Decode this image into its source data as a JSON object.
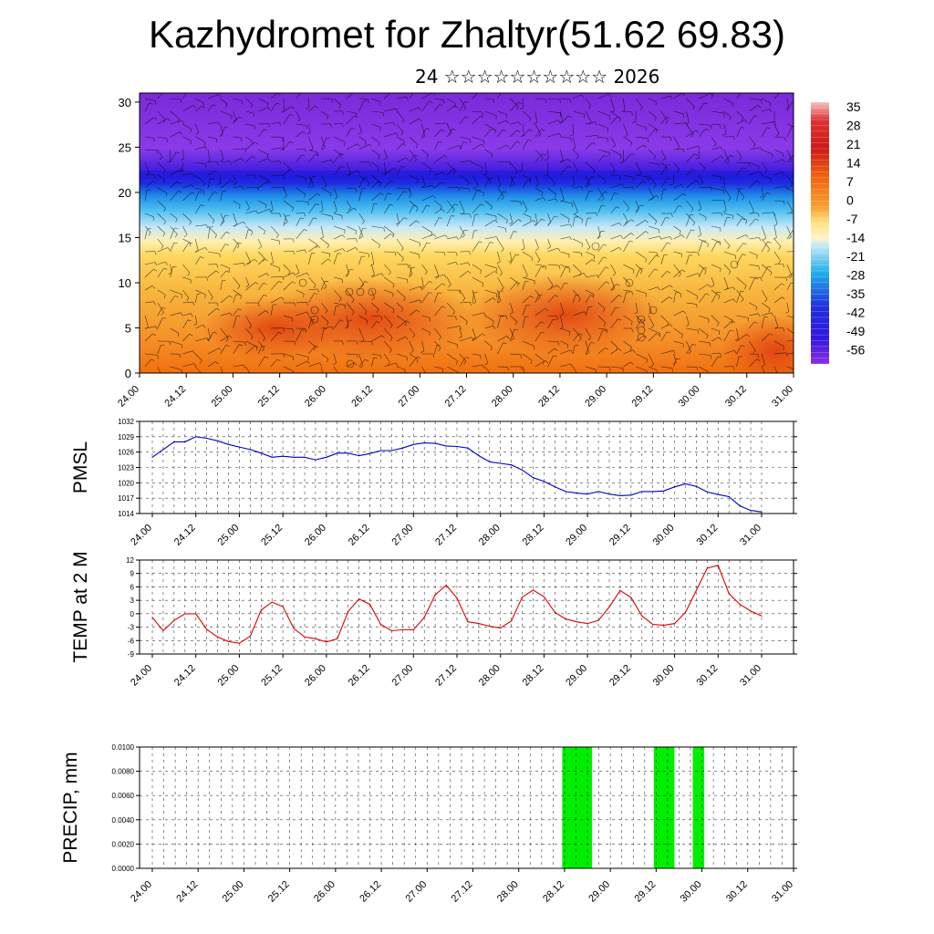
{
  "title": "Kazhydromet for Zhaltyr(51.62 69.83)",
  "subtitle": "24 ☆☆☆☆☆☆☆☆☆☆ 2026",
  "time_labels": [
    "24.00",
    "24.12",
    "25.00",
    "25.12",
    "26.00",
    "26.12",
    "27.00",
    "27.12",
    "28.00",
    "28.12",
    "29.00",
    "29.12",
    "30.00",
    "30.12",
    "31.00"
  ],
  "colorbar": {
    "labels": [
      "35",
      "28",
      "21",
      "14",
      "7",
      "0",
      "-7",
      "-14",
      "-21",
      "-28",
      "-35",
      "-42",
      "-49",
      "-56"
    ],
    "colors": {
      "warm_red": "#cc1a1a",
      "orange": "#f07818",
      "yellow": "#ffe080",
      "light_blue": "#c0e8f8",
      "cyan": "#20b0e8",
      "blue": "#2020e0",
      "purple": "#7a2ae0"
    }
  },
  "chart_data": [
    {
      "type": "heatmap",
      "name": "vertical temperature and wind cross-section",
      "y_ticks": [
        0,
        5,
        10,
        15,
        20,
        25,
        30
      ],
      "ylim": [
        0,
        31
      ],
      "x_tick_labels": [
        "24.00",
        "24.12",
        "25.00",
        "25.12",
        "26.00",
        "26.12",
        "27.00",
        "27.12",
        "28.00",
        "28.12",
        "29.00",
        "29.12",
        "30.00",
        "30.12",
        "31.00"
      ],
      "value_range": [
        -56,
        35
      ],
      "bands": [
        {
          "level_from": 0,
          "level_to": 14,
          "value": 7
        },
        {
          "level_from": 14,
          "level_to": 16,
          "value": -10
        },
        {
          "level_from": 16,
          "level_to": 20,
          "value": -30
        },
        {
          "level_from": 20,
          "level_to": 23,
          "value": -56
        },
        {
          "level_from": 23,
          "level_to": 31,
          "value": -49
        }
      ]
    },
    {
      "type": "line",
      "ylabel": "PMSL",
      "y_ticks": [
        1014,
        1017,
        1020,
        1023,
        1026,
        1029,
        1032
      ],
      "ylim": [
        1014,
        1032
      ],
      "x_tick_labels": [
        "24.00",
        "24.12",
        "25.00",
        "25.12",
        "26.00",
        "26.12",
        "27.00",
        "27.12",
        "28.00",
        "28.12",
        "29.00",
        "29.12",
        "30.00",
        "30.12",
        "31.00"
      ],
      "series_color": "#0000cc",
      "values": [
        1025,
        1026.5,
        1028,
        1028,
        1029,
        1028.7,
        1028.2,
        1027.5,
        1027,
        1026.5,
        1025.8,
        1025,
        1025.2,
        1025,
        1025,
        1024.5,
        1025,
        1025.8,
        1025.8,
        1025.3,
        1025.7,
        1026.3,
        1026.3,
        1026.8,
        1027.5,
        1027.8,
        1027.7,
        1027.2,
        1027.1,
        1026.8,
        1025.3,
        1024.1,
        1023.8,
        1023.5,
        1022.5,
        1021,
        1020.3,
        1019.2,
        1018.3,
        1018,
        1017.8,
        1018.3,
        1017.8,
        1017.5,
        1017.6,
        1018.3,
        1018.3,
        1018.4,
        1019.2,
        1019.8,
        1019.3,
        1018.2,
        1017.7,
        1017.3,
        1015.5,
        1014.6,
        1014.3
      ]
    },
    {
      "type": "line",
      "ylabel": "TEMP at 2 M",
      "y_ticks": [
        -9,
        -6,
        -3,
        0,
        3,
        6,
        9,
        12
      ],
      "ylim": [
        -9,
        12
      ],
      "x_tick_labels": [
        "24.00",
        "24.12",
        "25.00",
        "25.12",
        "26.00",
        "26.12",
        "27.00",
        "27.12",
        "28.00",
        "28.12",
        "29.00",
        "29.12",
        "30.00",
        "30.12",
        "31.00"
      ],
      "series_color": "#dd0000",
      "values": [
        -0.8,
        -3.8,
        -1.5,
        0,
        0,
        -3.5,
        -5.2,
        -6.2,
        -6.6,
        -5,
        0.8,
        2.6,
        1.6,
        -3.3,
        -5.2,
        -5.6,
        -6.3,
        -5.6,
        0.5,
        3.3,
        2.1,
        -2.4,
        -3.8,
        -3.6,
        -3.6,
        -0.8,
        4.2,
        6.4,
        3.5,
        -1.8,
        -2.2,
        -2.8,
        -3.2,
        -1.6,
        3.7,
        5.3,
        3.8,
        0.3,
        -1.2,
        -1.8,
        -2.2,
        -1.5,
        1.5,
        5.2,
        3.6,
        -0.5,
        -2.4,
        -2.6,
        -2.2,
        0.3,
        5.2,
        10.2,
        10.8,
        4.5,
        2.1,
        0.6,
        -0.5
      ]
    },
    {
      "type": "bar",
      "ylabel": "PRECIP, mm",
      "y_tick_labels": [
        "0.0000",
        "0.0020",
        "0.0040",
        "0.0060",
        "0.0080",
        "0.0100"
      ],
      "ylim": [
        0,
        0.01
      ],
      "x_tick_labels": [
        "24.00",
        "24.12",
        "25.00",
        "25.12",
        "26.00",
        "26.12",
        "27.00",
        "27.12",
        "28.00",
        "28.12",
        "29.00",
        "29.12",
        "30.00",
        "30.12",
        "31.00"
      ],
      "bar_color": "#00ee00",
      "bars": [
        {
          "start": 8.95,
          "end": 9.6,
          "value": 0.01
        },
        {
          "start": 10.95,
          "end": 11.4,
          "value": 0.01
        },
        {
          "start": 11.8,
          "end": 12.05,
          "value": 0.01
        }
      ]
    }
  ]
}
